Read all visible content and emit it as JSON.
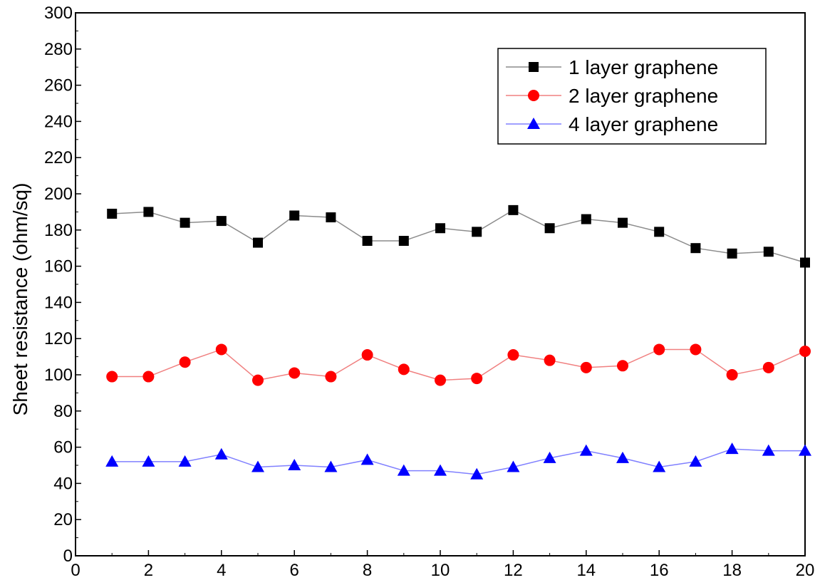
{
  "chart_data": {
    "type": "line",
    "title": "",
    "xlabel": "",
    "ylabel": "Sheet resistance (ohm/sq)",
    "xlim": [
      0,
      20
    ],
    "ylim": [
      0,
      300
    ],
    "xticks": [
      0,
      2,
      4,
      6,
      8,
      10,
      12,
      14,
      16,
      18,
      20
    ],
    "yticks": [
      0,
      20,
      40,
      60,
      80,
      100,
      120,
      140,
      160,
      180,
      200,
      220,
      240,
      260,
      280,
      300
    ],
    "grid": false,
    "legend_position": "top-right",
    "x": [
      1,
      2,
      3,
      4,
      5,
      6,
      7,
      8,
      9,
      10,
      11,
      12,
      13,
      14,
      15,
      16,
      17,
      18,
      19,
      20
    ],
    "series": [
      {
        "name": "1 layer graphene",
        "marker": "square",
        "color": "#000000",
        "line_color": "#8c8c8c",
        "values": [
          189,
          190,
          184,
          185,
          173,
          188,
          187,
          174,
          174,
          181,
          179,
          191,
          181,
          186,
          184,
          179,
          170,
          167,
          168,
          162
        ]
      },
      {
        "name": "2 layer graphene",
        "marker": "circle",
        "color": "#ff0000",
        "line_color": "#f08080",
        "values": [
          99,
          99,
          107,
          114,
          97,
          101,
          99,
          111,
          103,
          97,
          98,
          111,
          108,
          104,
          105,
          114,
          114,
          100,
          104,
          113
        ]
      },
      {
        "name": "4 layer graphene",
        "marker": "triangle",
        "color": "#0000ff",
        "line_color": "#8080ff",
        "values": [
          52,
          52,
          52,
          56,
          49,
          50,
          49,
          53,
          47,
          47,
          45,
          49,
          54,
          58,
          54,
          49,
          52,
          59,
          58,
          58
        ]
      }
    ]
  }
}
